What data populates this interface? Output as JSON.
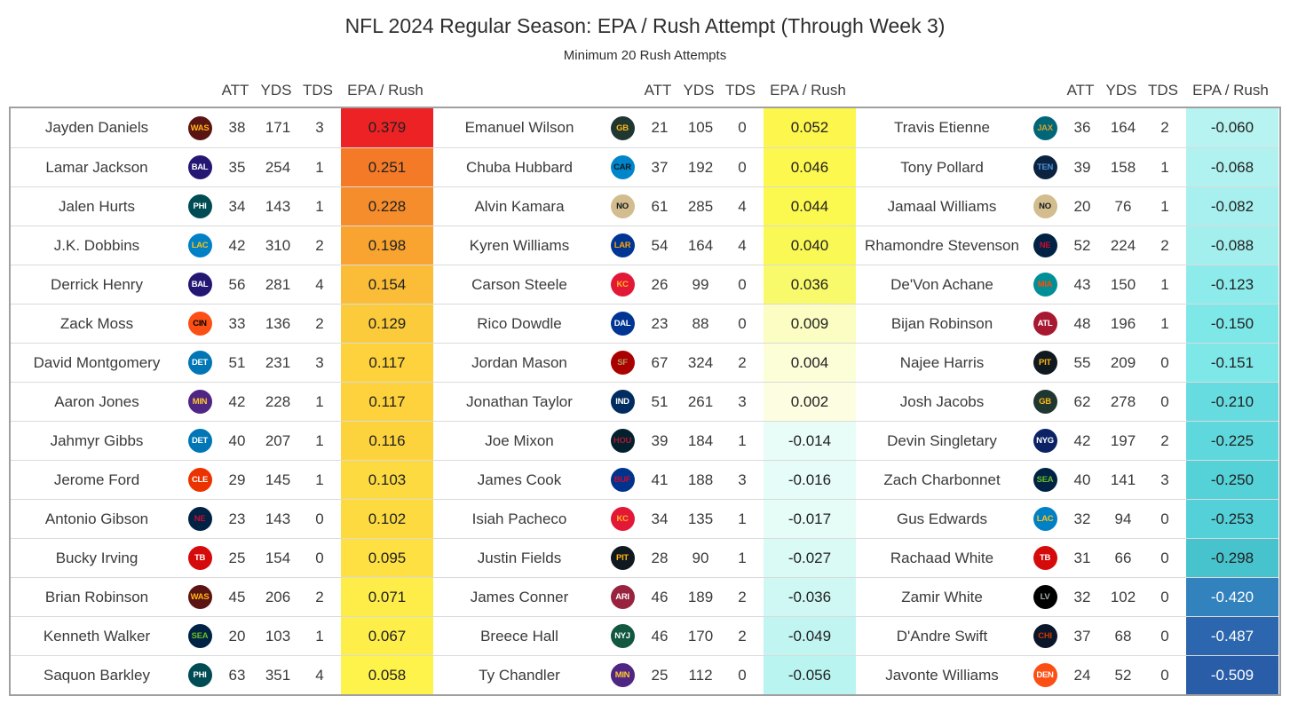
{
  "chart_data": {
    "type": "table",
    "title": "NFL 2024 Regular Season: EPA / Rush Attempt (Through Week 3)",
    "subtitle": "Minimum 20 Rush Attempts",
    "group_headers": [
      "ATT",
      "YDS",
      "TDS",
      "EPA / Rush"
    ],
    "colormap": {
      "high": "#ED2224",
      "mid": "#FFFFFF",
      "low": "#2A5DA8"
    },
    "columns": [
      {
        "rows": [
          {
            "player": "Jayden Daniels",
            "team": "WAS",
            "att": 38,
            "yds": 171,
            "tds": 3,
            "epa": "0.379",
            "bg": "#ED2224"
          },
          {
            "player": "Lamar Jackson",
            "team": "BAL",
            "att": 35,
            "yds": 254,
            "tds": 1,
            "epa": "0.251",
            "bg": "#F47A27"
          },
          {
            "player": "Jalen Hurts",
            "team": "PHI",
            "att": 34,
            "yds": 143,
            "tds": 1,
            "epa": "0.228",
            "bg": "#F68D2C"
          },
          {
            "player": "J.K. Dobbins",
            "team": "LAC",
            "att": 42,
            "yds": 310,
            "tds": 2,
            "epa": "0.198",
            "bg": "#F9A431"
          },
          {
            "player": "Derrick Henry",
            "team": "BAL",
            "att": 56,
            "yds": 281,
            "tds": 4,
            "epa": "0.154",
            "bg": "#FBBD37"
          },
          {
            "player": "Zack Moss",
            "team": "CIN",
            "att": 33,
            "yds": 136,
            "tds": 2,
            "epa": "0.129",
            "bg": "#FCCB3B"
          },
          {
            "player": "David Montgomery",
            "team": "DET",
            "att": 51,
            "yds": 231,
            "tds": 3,
            "epa": "0.117",
            "bg": "#FDD23D"
          },
          {
            "player": "Aaron Jones",
            "team": "MIN",
            "att": 42,
            "yds": 228,
            "tds": 1,
            "epa": "0.117",
            "bg": "#FDD23D"
          },
          {
            "player": "Jahmyr Gibbs",
            "team": "DET",
            "att": 40,
            "yds": 207,
            "tds": 1,
            "epa": "0.116",
            "bg": "#FDD33D"
          },
          {
            "player": "Jerome Ford",
            "team": "CLE",
            "att": 29,
            "yds": 145,
            "tds": 1,
            "epa": "0.103",
            "bg": "#FDDB40"
          },
          {
            "player": "Antonio Gibson",
            "team": "NE",
            "att": 23,
            "yds": 143,
            "tds": 0,
            "epa": "0.102",
            "bg": "#FDDB40"
          },
          {
            "player": "Bucky Irving",
            "team": "TB",
            "att": 25,
            "yds": 154,
            "tds": 0,
            "epa": "0.095",
            "bg": "#FEE043"
          },
          {
            "player": "Brian Robinson",
            "team": "WAS",
            "att": 45,
            "yds": 206,
            "tds": 2,
            "epa": "0.071",
            "bg": "#FEEC48"
          },
          {
            "player": "Kenneth Walker",
            "team": "SEA",
            "att": 20,
            "yds": 103,
            "tds": 1,
            "epa": "0.067",
            "bg": "#FEEE49"
          },
          {
            "player": "Saquon Barkley",
            "team": "PHI",
            "att": 63,
            "yds": 351,
            "tds": 4,
            "epa": "0.058",
            "bg": "#FEF34B"
          }
        ]
      },
      {
        "rows": [
          {
            "player": "Emanuel Wilson",
            "team": "GB",
            "att": 21,
            "yds": 105,
            "tds": 0,
            "epa": "0.052",
            "bg": "#FDF64D"
          },
          {
            "player": "Chuba Hubbard",
            "team": "CAR",
            "att": 37,
            "yds": 192,
            "tds": 0,
            "epa": "0.046",
            "bg": "#FCF84E"
          },
          {
            "player": "Alvin Kamara",
            "team": "NO",
            "att": 61,
            "yds": 285,
            "tds": 4,
            "epa": "0.044",
            "bg": "#FBF84F"
          },
          {
            "player": "Kyren Williams",
            "team": "LAR",
            "att": 54,
            "yds": 164,
            "tds": 4,
            "epa": "0.040",
            "bg": "#FAF855"
          },
          {
            "player": "Carson Steele",
            "team": "KC",
            "att": 26,
            "yds": 99,
            "tds": 0,
            "epa": "0.036",
            "bg": "#F9FA6B"
          },
          {
            "player": "Rico Dowdle",
            "team": "DAL",
            "att": 23,
            "yds": 88,
            "tds": 0,
            "epa": "0.009",
            "bg": "#FBFDC2"
          },
          {
            "player": "Jordan Mason",
            "team": "SF",
            "att": 67,
            "yds": 324,
            "tds": 2,
            "epa": "0.004",
            "bg": "#FCFED8"
          },
          {
            "player": "Jonathan Taylor",
            "team": "IND",
            "att": 51,
            "yds": 261,
            "tds": 3,
            "epa": "0.002",
            "bg": "#FDFEE1"
          },
          {
            "player": "Joe Mixon",
            "team": "HOU",
            "att": 39,
            "yds": 184,
            "tds": 1,
            "epa": "-0.014",
            "bg": "#E9FDF8"
          },
          {
            "player": "James Cook",
            "team": "BUF",
            "att": 41,
            "yds": 188,
            "tds": 3,
            "epa": "-0.016",
            "bg": "#E6FCF8"
          },
          {
            "player": "Isiah Pacheco",
            "team": "KC",
            "att": 34,
            "yds": 135,
            "tds": 1,
            "epa": "-0.017",
            "bg": "#E5FCF7"
          },
          {
            "player": "Justin Fields",
            "team": "PIT",
            "att": 28,
            "yds": 90,
            "tds": 1,
            "epa": "-0.027",
            "bg": "#DAFAF6"
          },
          {
            "player": "James Conner",
            "team": "ARI",
            "att": 46,
            "yds": 189,
            "tds": 2,
            "epa": "-0.036",
            "bg": "#CFF8F4"
          },
          {
            "player": "Breece Hall",
            "team": "NYJ",
            "att": 46,
            "yds": 170,
            "tds": 2,
            "epa": "-0.049",
            "bg": "#C1F5F2"
          },
          {
            "player": "Ty Chandler",
            "team": "MIN",
            "att": 25,
            "yds": 112,
            "tds": 0,
            "epa": "-0.056",
            "bg": "#BAF4F1"
          }
        ]
      },
      {
        "rows": [
          {
            "player": "Travis Etienne",
            "team": "JAX",
            "att": 36,
            "yds": 164,
            "tds": 2,
            "epa": "-0.060",
            "bg": "#B6F3F1"
          },
          {
            "player": "Tony Pollard",
            "team": "TEN",
            "att": 39,
            "yds": 158,
            "tds": 1,
            "epa": "-0.068",
            "bg": "#B0F2F0"
          },
          {
            "player": "Jamaal Williams",
            "team": "NO",
            "att": 20,
            "yds": 76,
            "tds": 1,
            "epa": "-0.082",
            "bg": "#A7F0EF"
          },
          {
            "player": "Rhamondre Stevenson",
            "team": "NE",
            "att": 52,
            "yds": 224,
            "tds": 2,
            "epa": "-0.088",
            "bg": "#A3EFEE"
          },
          {
            "player": "De'Von Achane",
            "team": "MIA",
            "att": 43,
            "yds": 150,
            "tds": 1,
            "epa": "-0.123",
            "bg": "#8EEBEB"
          },
          {
            "player": "Bijan Robinson",
            "team": "ATL",
            "att": 48,
            "yds": 196,
            "tds": 1,
            "epa": "-0.150",
            "bg": "#7EE7E8"
          },
          {
            "player": "Najee Harris",
            "team": "PIT",
            "att": 55,
            "yds": 209,
            "tds": 0,
            "epa": "-0.151",
            "bg": "#7EE7E8"
          },
          {
            "player": "Josh Jacobs",
            "team": "GB",
            "att": 62,
            "yds": 278,
            "tds": 0,
            "epa": "-0.210",
            "bg": "#66DCE0"
          },
          {
            "player": "Devin Singletary",
            "team": "NYG",
            "att": 42,
            "yds": 197,
            "tds": 2,
            "epa": "-0.225",
            "bg": "#5FD8DD"
          },
          {
            "player": "Zach Charbonnet",
            "team": "SEA",
            "att": 40,
            "yds": 141,
            "tds": 3,
            "epa": "-0.250",
            "bg": "#55D1D8"
          },
          {
            "player": "Gus Edwards",
            "team": "LAC",
            "att": 32,
            "yds": 94,
            "tds": 0,
            "epa": "-0.253",
            "bg": "#54D0D8"
          },
          {
            "player": "Rachaad White",
            "team": "TB",
            "att": 31,
            "yds": 66,
            "tds": 0,
            "epa": "-0.298",
            "bg": "#47C3CE"
          },
          {
            "player": "Zamir White",
            "team": "LV",
            "att": 32,
            "yds": 102,
            "tds": 0,
            "epa": "-0.420",
            "bg": "#3282BE",
            "fg": "#FFFFFF"
          },
          {
            "player": "D'Andre Swift",
            "team": "CHI",
            "att": 37,
            "yds": 68,
            "tds": 0,
            "epa": "-0.487",
            "bg": "#2C66AE",
            "fg": "#FFFFFF"
          },
          {
            "player": "Javonte Williams",
            "team": "DEN",
            "att": 24,
            "yds": 52,
            "tds": 0,
            "epa": "-0.509",
            "bg": "#2A5DA8",
            "fg": "#FFFFFF"
          }
        ]
      }
    ]
  },
  "teams": {
    "WAS": {
      "abbr": "WAS",
      "color": "#5A1414",
      "fg": "#FFB612"
    },
    "BAL": {
      "abbr": "BAL",
      "color": "#241773",
      "fg": "#FFFFFF"
    },
    "PHI": {
      "abbr": "PHI",
      "color": "#004C54",
      "fg": "#FFFFFF"
    },
    "LAC": {
      "abbr": "LAC",
      "color": "#0080C6",
      "fg": "#FFC20E"
    },
    "CIN": {
      "abbr": "CIN",
      "color": "#FB4F14",
      "fg": "#000000"
    },
    "DET": {
      "abbr": "DET",
      "color": "#0076B6",
      "fg": "#FFFFFF"
    },
    "MIN": {
      "abbr": "MIN",
      "color": "#4F2683",
      "fg": "#FFC62F"
    },
    "CLE": {
      "abbr": "CLE",
      "color": "#EB3300",
      "fg": "#FFFFFF"
    },
    "NE": {
      "abbr": "NE",
      "color": "#002244",
      "fg": "#C60C30"
    },
    "TB": {
      "abbr": "TB",
      "color": "#D50A0A",
      "fg": "#FFFFFF"
    },
    "SEA": {
      "abbr": "SEA",
      "color": "#002244",
      "fg": "#69BE28"
    },
    "GB": {
      "abbr": "GB",
      "color": "#203731",
      "fg": "#FFB612"
    },
    "CAR": {
      "abbr": "CAR",
      "color": "#0085CA",
      "fg": "#101820"
    },
    "NO": {
      "abbr": "NO",
      "color": "#D3BC8D",
      "fg": "#101820"
    },
    "LAR": {
      "abbr": "LAR",
      "color": "#003594",
      "fg": "#FFA300"
    },
    "KC": {
      "abbr": "KC",
      "color": "#E31837",
      "fg": "#FFB81C"
    },
    "DAL": {
      "abbr": "DAL",
      "color": "#003594",
      "fg": "#FFFFFF"
    },
    "SF": {
      "abbr": "SF",
      "color": "#AA0000",
      "fg": "#B3995D"
    },
    "IND": {
      "abbr": "IND",
      "color": "#002C5F",
      "fg": "#FFFFFF"
    },
    "HOU": {
      "abbr": "HOU",
      "color": "#03202F",
      "fg": "#A71930"
    },
    "BUF": {
      "abbr": "BUF",
      "color": "#00338D",
      "fg": "#C60C30"
    },
    "PIT": {
      "abbr": "PIT",
      "color": "#101820",
      "fg": "#FFB612"
    },
    "ARI": {
      "abbr": "ARI",
      "color": "#97233F",
      "fg": "#FFFFFF"
    },
    "NYJ": {
      "abbr": "NYJ",
      "color": "#125740",
      "fg": "#FFFFFF"
    },
    "JAX": {
      "abbr": "JAX",
      "color": "#006778",
      "fg": "#D7A22A"
    },
    "TEN": {
      "abbr": "TEN",
      "color": "#0C2340",
      "fg": "#4B92DB"
    },
    "MIA": {
      "abbr": "MIA",
      "color": "#008E97",
      "fg": "#FC4C02"
    },
    "ATL": {
      "abbr": "ATL",
      "color": "#A71930",
      "fg": "#FFFFFF"
    },
    "NYG": {
      "abbr": "NYG",
      "color": "#0B2265",
      "fg": "#FFFFFF"
    },
    "LV": {
      "abbr": "LV",
      "color": "#000000",
      "fg": "#A5ACAF"
    },
    "CHI": {
      "abbr": "CHI",
      "color": "#0B162A",
      "fg": "#C83803"
    },
    "DEN": {
      "abbr": "DEN",
      "color": "#FB4F14",
      "fg": "#FFFFFF"
    }
  }
}
